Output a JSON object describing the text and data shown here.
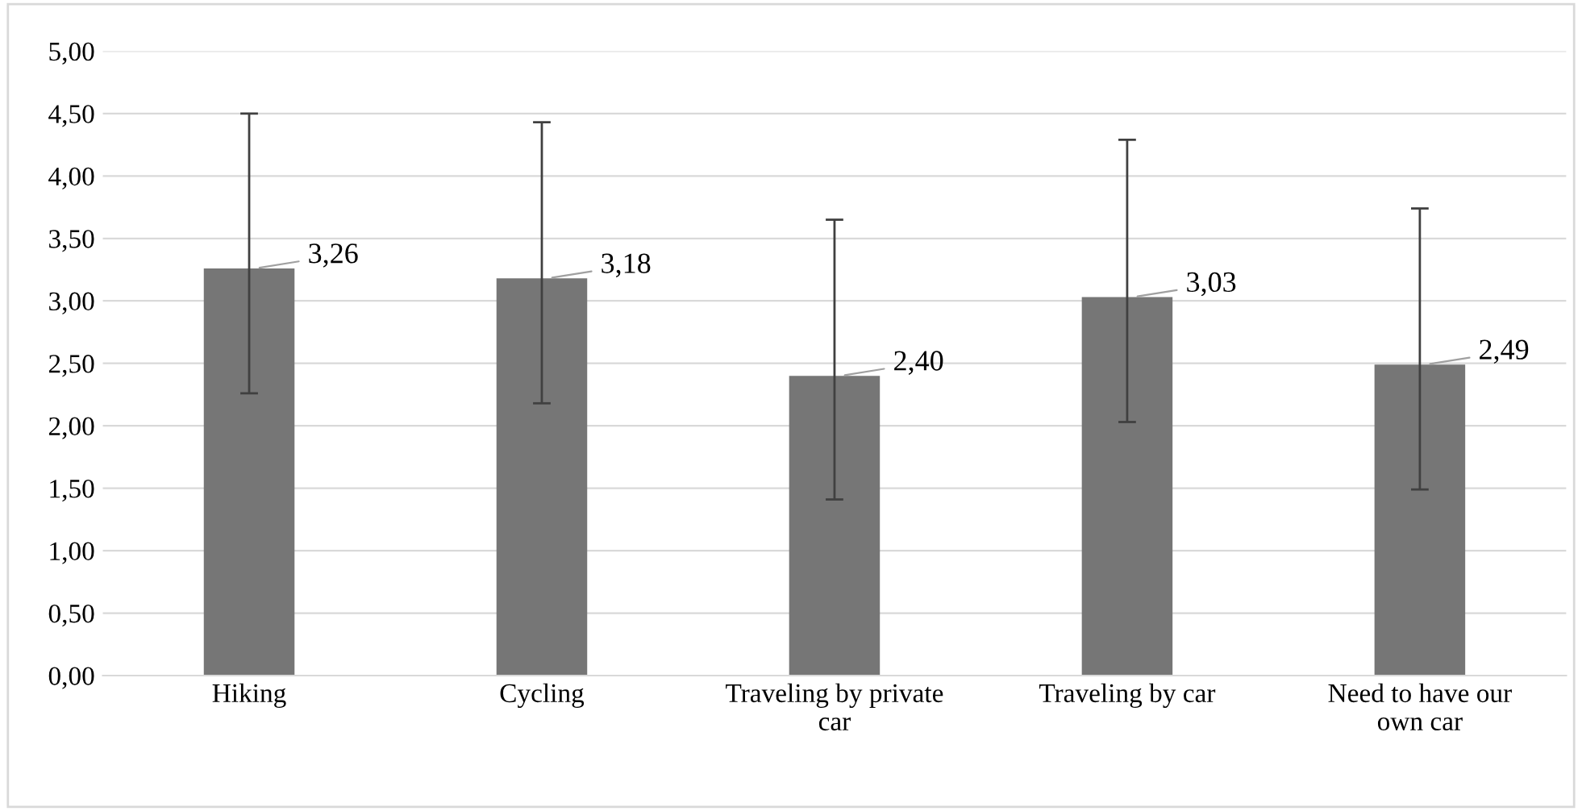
{
  "chart_data": {
    "type": "bar",
    "categories": [
      "Hiking",
      "Cycling",
      "Traveling by private\ncar",
      "Traveling by car",
      "Need to have our\nown car"
    ],
    "values": [
      3.26,
      3.18,
      2.4,
      3.03,
      2.49
    ],
    "color": "#767676",
    "errors": [
      [
        2.26,
        4.5
      ],
      [
        2.18,
        4.43
      ],
      [
        1.41,
        3.65
      ],
      [
        2.03,
        4.29
      ],
      [
        1.49,
        3.74
      ]
    ],
    "value_labels": [
      "3,26",
      "3,18",
      "2,40",
      "3,03",
      "2,49"
    ],
    "ylim": [
      0,
      5
    ],
    "yticks": [
      {
        "value": 0,
        "label": "0,00"
      },
      {
        "value": 0.5,
        "label": "0,50"
      },
      {
        "value": 1,
        "label": "1,00"
      },
      {
        "value": 1.5,
        "label": "1,50"
      },
      {
        "value": 2,
        "label": "2,00"
      },
      {
        "value": 2.5,
        "label": "2,50"
      },
      {
        "value": 3,
        "label": "3,00"
      },
      {
        "value": 3.5,
        "label": "3,50"
      },
      {
        "value": 4,
        "label": "4,00"
      },
      {
        "value": 4.5,
        "label": "4,50"
      },
      {
        "value": 5,
        "label": "5,00"
      }
    ],
    "grid": "y"
  }
}
